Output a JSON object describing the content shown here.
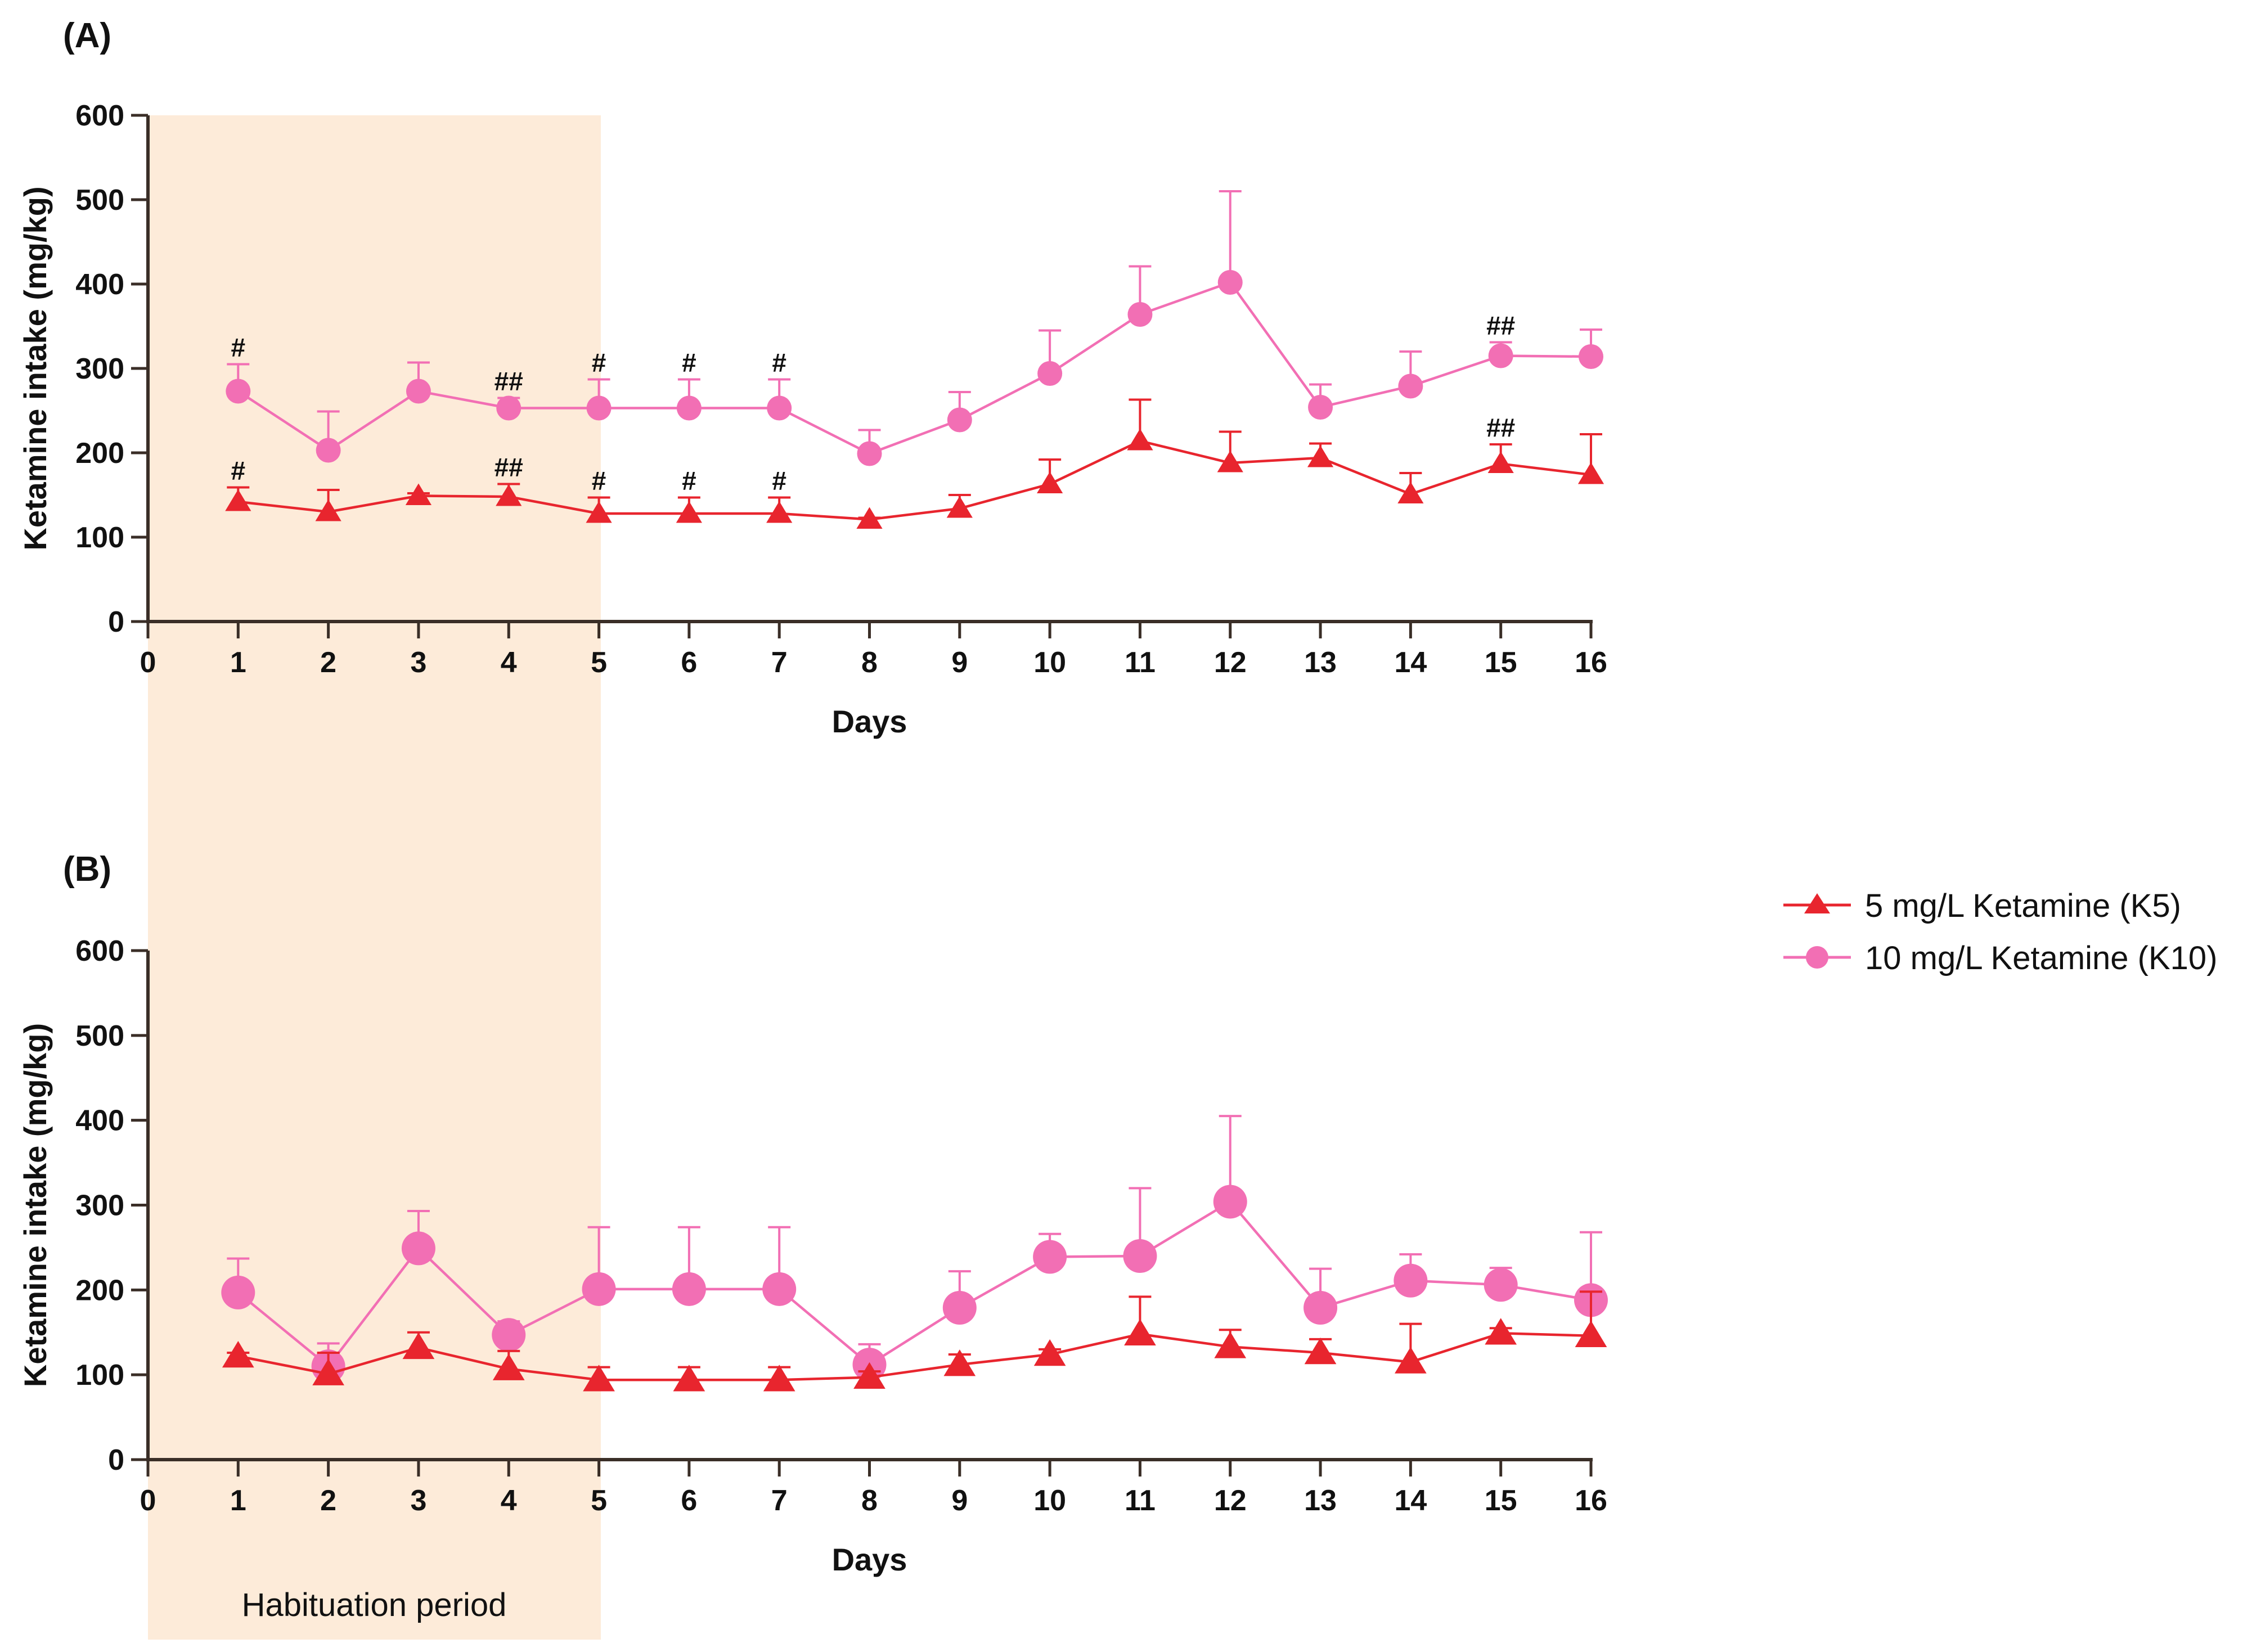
{
  "chart_data": [
    {
      "type": "line",
      "panel_label": "(A)",
      "xlabel": "Days",
      "ylabel": "Ketamine intake (mg/kg)",
      "xlim": [
        0,
        16
      ],
      "ylim": [
        0,
        600
      ],
      "xticks": [
        0,
        1,
        2,
        3,
        4,
        5,
        6,
        7,
        8,
        9,
        10,
        11,
        12,
        13,
        14,
        15,
        16
      ],
      "yticks": [
        0,
        100,
        200,
        300,
        400,
        500,
        600
      ],
      "shaded_region": {
        "x_range": [
          0,
          5
        ],
        "color": "#fdebd9"
      },
      "series": [
        {
          "name": "10 mg/L Ketamine (K10)",
          "marker": "circle",
          "color": "#f26fb4",
          "x": [
            1,
            2,
            3,
            4,
            5,
            6,
            7,
            8,
            9,
            10,
            11,
            12,
            13,
            14,
            15,
            16
          ],
          "values": [
            273,
            203,
            273,
            253,
            253,
            253,
            253,
            199,
            239,
            294,
            364,
            402,
            254,
            279,
            315,
            314
          ],
          "error_upper": [
            305,
            249,
            307,
            265,
            287,
            287,
            287,
            227,
            272,
            345,
            421,
            510,
            281,
            320,
            331,
            346
          ],
          "significance": [
            {
              "x": 1,
              "label": "#"
            },
            {
              "x": 4,
              "label": "##"
            },
            {
              "x": 5,
              "label": "#"
            },
            {
              "x": 6,
              "label": "#"
            },
            {
              "x": 7,
              "label": "#"
            },
            {
              "x": 15,
              "label": "##"
            }
          ]
        },
        {
          "name": "5 mg/L Ketamine (K5)",
          "marker": "triangle",
          "color": "#e8252e",
          "x": [
            1,
            2,
            3,
            4,
            5,
            6,
            7,
            8,
            9,
            10,
            11,
            12,
            13,
            14,
            15,
            16
          ],
          "values": [
            142,
            130,
            149,
            148,
            128,
            128,
            128,
            121,
            134,
            163,
            214,
            188,
            194,
            151,
            187,
            174
          ],
          "error_upper": [
            159,
            156,
            152,
            163,
            147,
            147,
            147,
            123,
            150,
            192,
            263,
            225,
            211,
            176,
            210,
            222
          ],
          "significance": [
            {
              "x": 1,
              "label": "#"
            },
            {
              "x": 4,
              "label": "##"
            },
            {
              "x": 5,
              "label": "#"
            },
            {
              "x": 6,
              "label": "#"
            },
            {
              "x": 7,
              "label": "#"
            },
            {
              "x": 15,
              "label": "##"
            }
          ]
        }
      ]
    },
    {
      "type": "line",
      "panel_label": "(B)",
      "xlabel": "Days",
      "ylabel": "Ketamine intake (mg/kg)",
      "xlim": [
        0,
        16
      ],
      "ylim": [
        0,
        600
      ],
      "xticks": [
        0,
        1,
        2,
        3,
        4,
        5,
        6,
        7,
        8,
        9,
        10,
        11,
        12,
        13,
        14,
        15,
        16
      ],
      "yticks": [
        0,
        100,
        200,
        300,
        400,
        500,
        600
      ],
      "shaded_region": {
        "x_range": [
          0,
          5
        ],
        "color": "#fdebd9",
        "label": "Habituation period"
      },
      "series": [
        {
          "name": "10 mg/L Ketamine (K10)",
          "marker": "circle",
          "color": "#f26fb4",
          "x": [
            1,
            2,
            3,
            4,
            5,
            6,
            7,
            8,
            9,
            10,
            11,
            12,
            13,
            14,
            15,
            16
          ],
          "values": [
            197,
            110,
            249,
            147,
            201,
            201,
            201,
            112,
            179,
            239,
            240,
            304,
            179,
            211,
            206,
            188
          ],
          "error_upper": [
            237,
            137,
            293,
            163,
            274,
            274,
            274,
            136,
            222,
            266,
            320,
            405,
            225,
            242,
            226,
            268
          ],
          "significance": []
        },
        {
          "name": "5 mg/L Ketamine (K5)",
          "marker": "triangle",
          "color": "#e8252e",
          "x": [
            1,
            2,
            3,
            4,
            5,
            6,
            7,
            8,
            9,
            10,
            11,
            12,
            13,
            14,
            15,
            16
          ],
          "values": [
            122,
            101,
            132,
            107,
            94,
            94,
            94,
            97,
            112,
            124,
            148,
            133,
            126,
            115,
            149,
            146
          ],
          "error_upper": [
            126,
            126,
            150,
            128,
            109,
            109,
            109,
            104,
            124,
            130,
            192,
            153,
            142,
            160,
            155,
            198
          ],
          "significance": []
        }
      ]
    }
  ],
  "legend": {
    "items": [
      {
        "label": "5 mg/L Ketamine (K5)",
        "marker": "triangle",
        "color": "#e8252e"
      },
      {
        "label": "10 mg/L Ketamine (K10)",
        "marker": "circle",
        "color": "#f26fb4"
      }
    ]
  },
  "colors": {
    "axis": "#3a2e27",
    "shade": "#fdebd9",
    "k5": "#e8252e",
    "k10": "#f26fb4"
  }
}
